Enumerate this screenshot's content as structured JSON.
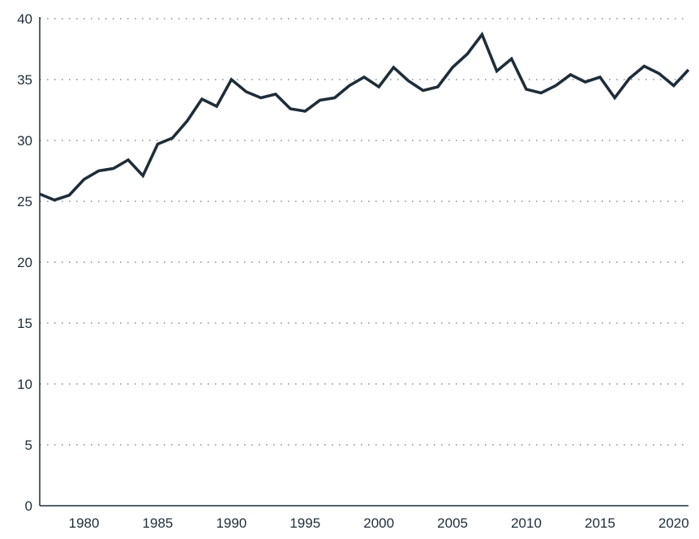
{
  "chart_data": {
    "type": "line",
    "title": "",
    "xlabel": "",
    "ylabel": "",
    "xlim": [
      1977,
      2021
    ],
    "ylim": [
      0,
      40
    ],
    "grid": true,
    "x_ticks": [
      1980,
      1985,
      1990,
      1995,
      2000,
      2005,
      2010,
      2015,
      2020
    ],
    "y_ticks": [
      0,
      5,
      10,
      15,
      20,
      25,
      30,
      35,
      40
    ],
    "series": [
      {
        "color": "#1f2d38",
        "x": [
          1977,
          1978,
          1979,
          1980,
          1981,
          1982,
          1983,
          1984,
          1985,
          1986,
          1987,
          1988,
          1989,
          1990,
          1991,
          1992,
          1993,
          1994,
          1995,
          1996,
          1997,
          1998,
          1999,
          2000,
          2001,
          2002,
          2003,
          2004,
          2005,
          2006,
          2007,
          2008,
          2009,
          2010,
          2011,
          2012,
          2013,
          2014,
          2015,
          2016,
          2017,
          2018,
          2019,
          2020,
          2021
        ],
        "values": [
          25.6,
          25.1,
          25.5,
          26.8,
          27.5,
          27.7,
          28.4,
          27.1,
          29.7,
          30.2,
          31.6,
          33.4,
          32.8,
          35.0,
          34.0,
          33.5,
          33.8,
          32.6,
          32.4,
          33.3,
          33.5,
          34.5,
          35.2,
          34.4,
          36.0,
          34.9,
          34.1,
          34.4,
          36.0,
          37.1,
          38.7,
          35.7,
          36.7,
          34.2,
          33.9,
          34.5,
          35.4,
          34.8,
          35.2,
          33.5,
          35.1,
          36.1,
          35.5,
          34.5,
          35.8
        ]
      }
    ]
  }
}
